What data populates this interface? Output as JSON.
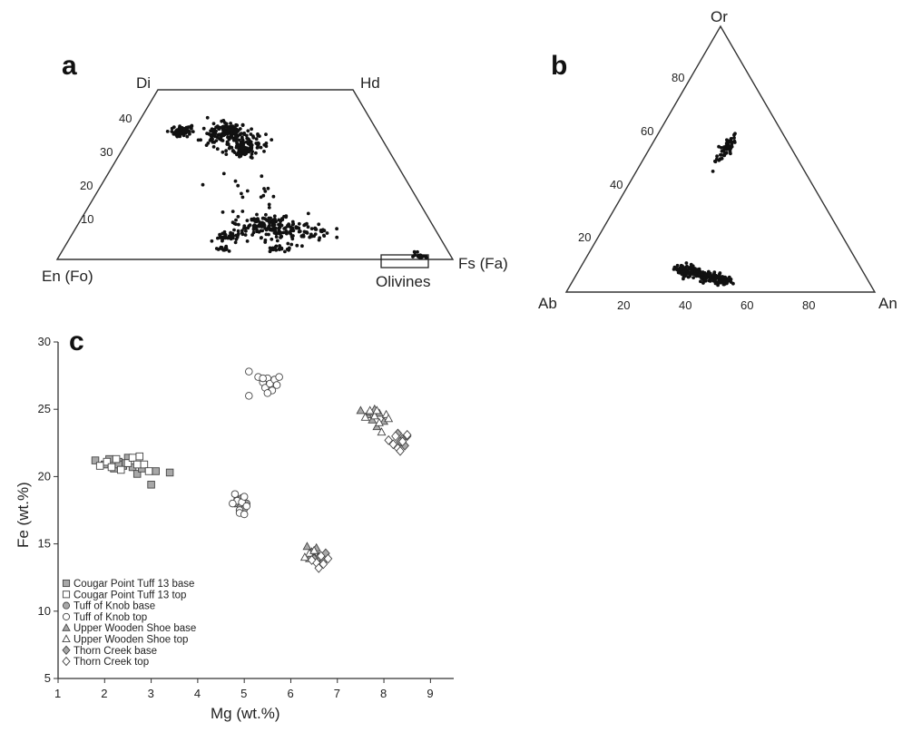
{
  "chart_data": [
    {
      "panel": "a",
      "type": "scatter",
      "subtype": "pyroxene-quadrilateral",
      "vertices": {
        "top_left": "Di",
        "top_right": "Hd",
        "bottom_left": "En (Fo)",
        "bottom_right": "Fs (Fa)"
      },
      "wo_ticks": [
        "10",
        "20",
        "30",
        "40"
      ],
      "inset_label": "Olivines",
      "clusters": [
        {
          "wo": 38,
          "fs": 20,
          "spread": 2.5,
          "n": 55
        },
        {
          "wo": 37,
          "fs": 38,
          "spread": 5,
          "n": 150
        },
        {
          "wo": 34,
          "fs": 48,
          "spread": 4,
          "n": 60
        },
        {
          "wo": 32,
          "fs": 45,
          "spread": 3,
          "n": 40
        },
        {
          "wo": 10,
          "fs": 52,
          "spread": 5,
          "n": 130
        },
        {
          "wo": 7,
          "fs": 43,
          "spread": 2,
          "n": 40
        },
        {
          "wo": 8,
          "fs": 62,
          "spread": 5,
          "n": 80
        },
        {
          "wo": 3,
          "fs": 42,
          "spread": 1,
          "n": 15
        },
        {
          "wo": 3,
          "fs": 56,
          "spread": 2,
          "n": 20
        },
        {
          "wo": 20,
          "fs": 46,
          "spread": 8,
          "n": 18
        },
        {
          "wo": 1,
          "fs": 92,
          "spread": 2,
          "n": 18
        }
      ]
    },
    {
      "panel": "b",
      "type": "scatter",
      "subtype": "ternary",
      "vertices": {
        "top": "Or",
        "left": "Ab",
        "right": "An"
      },
      "or_ticks": [
        "20",
        "40",
        "60",
        "80"
      ],
      "an_ticks": [
        "20",
        "40",
        "60",
        "80"
      ],
      "clusters": [
        {
          "an": 25,
          "or": 54,
          "spread_an": 1,
          "spread_or": 5,
          "n": 60
        },
        {
          "an": 38,
          "or": 6,
          "spread_an": 7,
          "spread_or": 2,
          "n": 260
        }
      ]
    },
    {
      "panel": "c",
      "type": "scatter",
      "xlabel": "Mg (wt.%)",
      "ylabel": "Fe (wt.%)",
      "xlim": [
        1,
        9.5
      ],
      "ylim": [
        5,
        30
      ],
      "xticks": [
        1,
        2,
        3,
        4,
        5,
        6,
        7,
        8,
        9
      ],
      "yticks": [
        5,
        10,
        15,
        20,
        25,
        30
      ],
      "legend_position": "bottom-left",
      "series": [
        {
          "name": "Cougar Point Tuff 13 base",
          "marker": "square",
          "fill": "#a8a8a8",
          "points": [
            [
              1.8,
              21.2
            ],
            [
              2.0,
              20.9
            ],
            [
              2.1,
              21.3
            ],
            [
              2.2,
              20.6
            ],
            [
              2.3,
              21.1
            ],
            [
              2.4,
              20.8
            ],
            [
              2.5,
              21.4
            ],
            [
              2.6,
              20.7
            ],
            [
              2.7,
              20.2
            ],
            [
              2.8,
              20.6
            ],
            [
              3.0,
              19.4
            ],
            [
              3.1,
              20.4
            ],
            [
              3.4,
              20.3
            ],
            [
              2.3,
              20.9
            ],
            [
              2.45,
              21.0
            ]
          ]
        },
        {
          "name": "Cougar Point Tuff 13 top",
          "marker": "square",
          "fill": "#ffffff",
          "points": [
            [
              1.9,
              20.8
            ],
            [
              2.05,
              21.1
            ],
            [
              2.15,
              20.7
            ],
            [
              2.25,
              21.3
            ],
            [
              2.35,
              20.5
            ],
            [
              2.5,
              21.0
            ],
            [
              2.6,
              21.4
            ],
            [
              2.75,
              21.5
            ],
            [
              2.85,
              20.9
            ],
            [
              2.95,
              20.4
            ],
            [
              2.7,
              20.9
            ]
          ]
        },
        {
          "name": "Tuff of Knob base",
          "marker": "circle",
          "fill": "#a8a8a8",
          "points": [
            [
              4.85,
              18.3
            ],
            [
              4.9,
              17.9
            ],
            [
              4.95,
              18.4
            ],
            [
              5.0,
              17.6
            ],
            [
              4.8,
              18.0
            ],
            [
              5.05,
              18.0
            ]
          ]
        },
        {
          "name": "Tuff of Knob top",
          "marker": "circle",
          "fill": "#ffffff",
          "points": [
            [
              4.8,
              18.7
            ],
            [
              4.85,
              18.2
            ],
            [
              4.9,
              17.5
            ],
            [
              4.95,
              18.1
            ],
            [
              5.0,
              18.5
            ],
            [
              5.05,
              17.8
            ],
            [
              4.75,
              18.0
            ],
            [
              4.9,
              17.3
            ],
            [
              5.0,
              17.2
            ],
            [
              5.1,
              26.0
            ],
            [
              5.1,
              27.8
            ],
            [
              5.3,
              27.4
            ],
            [
              5.4,
              27.0
            ],
            [
              5.45,
              26.6
            ],
            [
              5.5,
              27.3
            ],
            [
              5.55,
              26.9
            ],
            [
              5.6,
              26.4
            ],
            [
              5.65,
              27.2
            ],
            [
              5.7,
              26.8
            ],
            [
              5.5,
              26.2
            ],
            [
              5.75,
              27.4
            ],
            [
              5.4,
              27.3
            ]
          ]
        },
        {
          "name": "Upper Wooden Shoe base",
          "marker": "triangle",
          "fill": "#a8a8a8",
          "points": [
            [
              6.35,
              14.8
            ],
            [
              6.45,
              14.4
            ],
            [
              6.5,
              14.0
            ],
            [
              6.55,
              14.7
            ],
            [
              6.4,
              13.9
            ],
            [
              7.5,
              24.9
            ],
            [
              7.65,
              24.6
            ],
            [
              7.75,
              24.2
            ],
            [
              7.8,
              25.0
            ],
            [
              7.9,
              24.7
            ],
            [
              7.85,
              23.7
            ],
            [
              8.0,
              24.1
            ],
            [
              7.7,
              24.8
            ]
          ]
        },
        {
          "name": "Upper Wooden Shoe top",
          "marker": "triangle",
          "fill": "#ffffff",
          "points": [
            [
              6.4,
              14.3
            ],
            [
              6.5,
              14.5
            ],
            [
              6.6,
              14.1
            ],
            [
              6.3,
              14.0
            ],
            [
              7.6,
              24.4
            ],
            [
              7.7,
              24.9
            ],
            [
              7.8,
              24.5
            ],
            [
              7.9,
              24.0
            ],
            [
              8.05,
              24.6
            ],
            [
              7.95,
              23.3
            ],
            [
              7.85,
              24.9
            ],
            [
              8.1,
              24.3
            ]
          ]
        },
        {
          "name": "Thorn Creek base",
          "marker": "diamond",
          "fill": "#a8a8a8",
          "points": [
            [
              6.6,
              14.0
            ],
            [
              6.7,
              13.7
            ],
            [
              6.75,
              14.3
            ],
            [
              6.5,
              13.9
            ],
            [
              8.3,
              23.2
            ],
            [
              8.4,
              22.8
            ],
            [
              8.5,
              23.0
            ],
            [
              8.45,
              22.3
            ],
            [
              8.35,
              22.6
            ]
          ]
        },
        {
          "name": "Thorn Creek top",
          "marker": "diamond",
          "fill": "#ffffff",
          "points": [
            [
              6.55,
              13.6
            ],
            [
              6.6,
              13.2
            ],
            [
              6.7,
              13.5
            ],
            [
              6.8,
              13.9
            ],
            [
              6.65,
              14.1
            ],
            [
              6.45,
              13.8
            ],
            [
              8.1,
              22.7
            ],
            [
              8.2,
              22.4
            ],
            [
              8.3,
              22.1
            ],
            [
              8.4,
              22.6
            ],
            [
              8.5,
              23.1
            ],
            [
              8.25,
              23.0
            ],
            [
              8.35,
              21.9
            ]
          ]
        }
      ]
    }
  ]
}
